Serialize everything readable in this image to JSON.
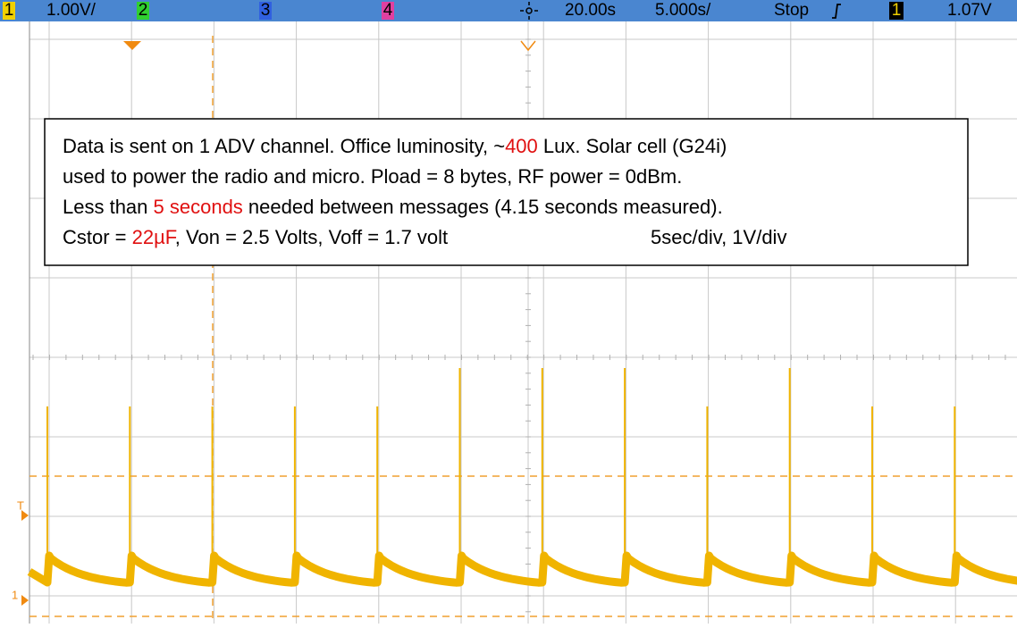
{
  "status_bar": {
    "ch1": "1",
    "ch1_scale": "1.00V/",
    "ch2": "2",
    "ch3": "3",
    "ch4": "4",
    "time_position": "20.00s",
    "time_scale": "5.000s/",
    "run_state": "Stop",
    "trigger_source": "1",
    "trigger_level": "1.07V"
  },
  "annotation": {
    "lines": [
      [
        "Data is sent on 1 ADV channel.  Office luminosity, ~",
        "400",
        " Lux. Solar cell (G24i)"
      ],
      [
        "used to power the radio and micro. Pload = 8 bytes, RF power = 0dBm."
      ],
      [
        "Less than ",
        "5 seconds",
        " needed between messages (4.15 seconds measured)."
      ],
      [
        "Cstor = ",
        "22µF",
        ", Von = 2.5 Volts, Voff = 1.7 volt",
        "5sec/div, 1V/div"
      ]
    ]
  },
  "markers": {
    "trigger": "T",
    "ground": "1"
  }
}
